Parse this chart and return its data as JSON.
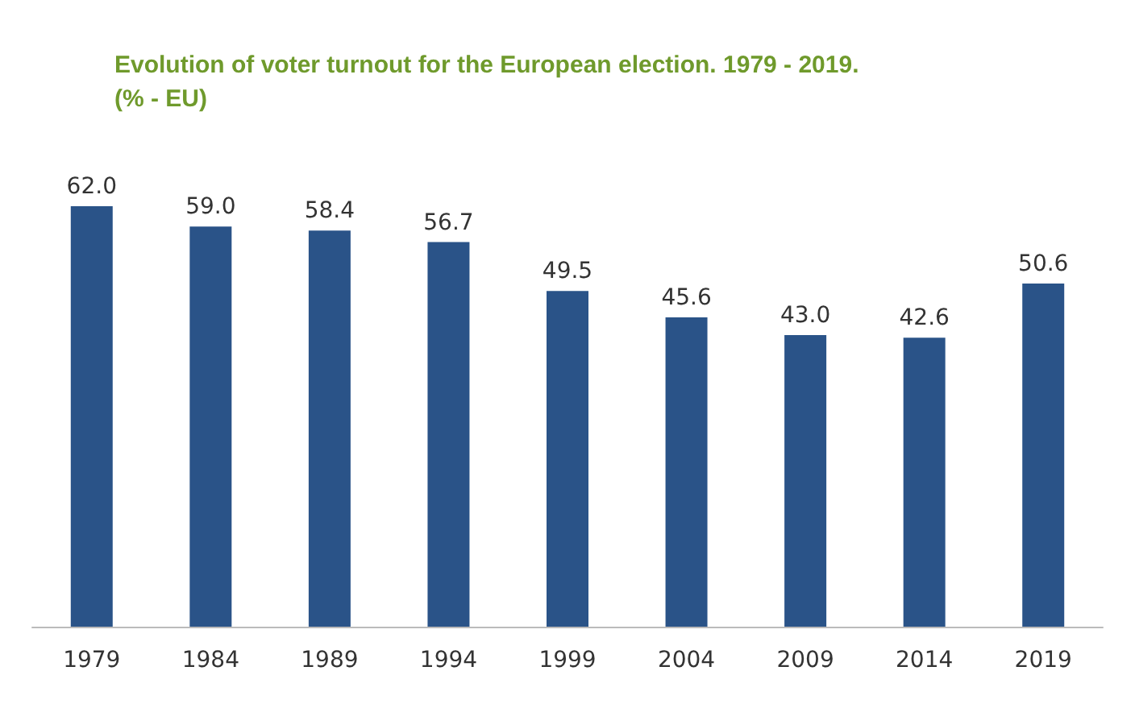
{
  "chart_data": {
    "type": "bar",
    "title": "Evolution of voter turnout for the European election. 1979 - 2019.",
    "subtitle": "(% - EU)",
    "categories": [
      "1979",
      "1984",
      "1989",
      "1994",
      "1999",
      "2004",
      "2009",
      "2014",
      "2019"
    ],
    "values": [
      62.0,
      59.0,
      58.4,
      56.7,
      49.5,
      45.6,
      43.0,
      42.6,
      50.6
    ],
    "value_labels": [
      "62.0",
      "59.0",
      "58.4",
      "56.7",
      "49.5",
      "45.6",
      "43.0",
      "42.6",
      "50.6"
    ],
    "color": "#2a5388",
    "grid": false
  }
}
